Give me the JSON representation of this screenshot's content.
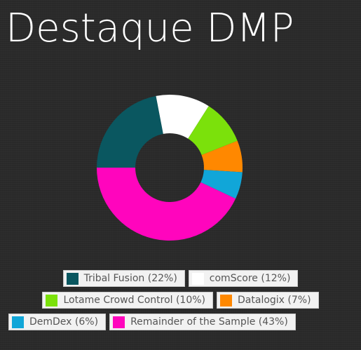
{
  "page": {
    "title": "Destaque DMP"
  },
  "chart_data": {
    "type": "pie",
    "donut": true,
    "series": [
      {
        "name": "Tribal Fusion",
        "value": 22,
        "color": "#0a5760",
        "legend_label": "Tribal Fusion (22%)"
      },
      {
        "name": "comScore",
        "value": 12,
        "color": "#ffffff",
        "legend_label": "comScore (12%)"
      },
      {
        "name": "Lotame Crowd Control",
        "value": 10,
        "color": "#7be10b",
        "legend_label": "Lotame Crowd Control (10%)"
      },
      {
        "name": "Datalogix",
        "value": 7,
        "color": "#ff8800",
        "legend_label": "Datalogix (7%)"
      },
      {
        "name": "DemDex",
        "value": 6,
        "color": "#11a6d8",
        "legend_label": "DemDex (6%)"
      },
      {
        "name": "Remainder of the Sample",
        "value": 43,
        "color": "#ff05bd",
        "legend_label": "Remainder of the Sample (43%)"
      }
    ],
    "legend_placement": "bottom"
  }
}
